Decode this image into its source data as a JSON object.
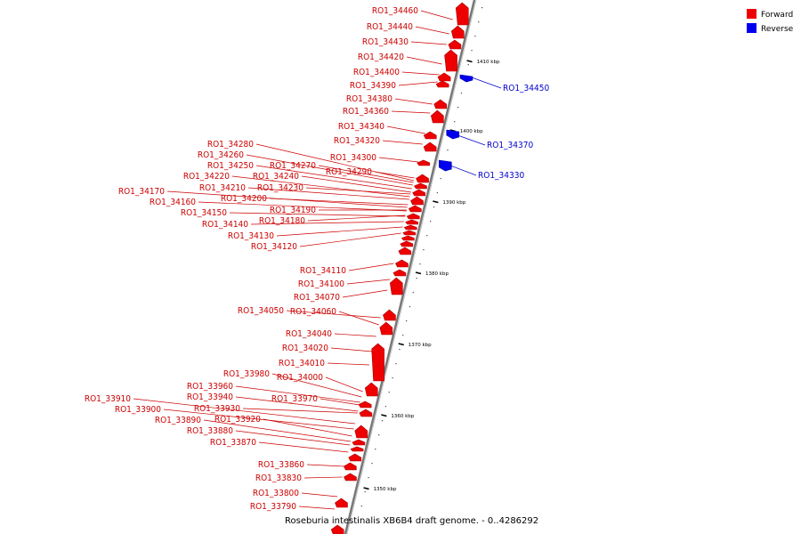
{
  "title": "Roseburia intestinalis XB6B4 draft genome. - 0..4286292",
  "legend": [
    {
      "label": "Forward",
      "color": "#ee0000"
    },
    {
      "label": "Reverse",
      "color": "#0000ee"
    }
  ],
  "colors": {
    "forward": "#ee0000",
    "forward_line": "#cc0000",
    "forward_dark": "#aa0000",
    "reverse": "#0000ee",
    "reverse_line": "#0000cc",
    "backbone": "#777777"
  },
  "ticks": [
    "1410 kbp",
    "1400 kbp",
    "1390 kbp",
    "1380 kbp",
    "1370 kbp",
    "1360 kbp",
    "1350 kbp"
  ],
  "forward_labels": [
    "RO1_34460",
    "RO1_34440",
    "RO1_34430",
    "RO1_34420",
    "RO1_34400",
    "RO1_34390",
    "RO1_34380",
    "RO1_34360",
    "RO1_34340",
    "RO1_34320",
    "RO1_34300",
    "RO1_34290",
    "RO1_34280",
    "RO1_34260",
    "RO1_34250",
    "RO1_34270",
    "RO1_34240",
    "RO1_34220",
    "RO1_34210",
    "RO1_34230",
    "RO1_34170",
    "RO1_34200",
    "RO1_34160",
    "RO1_34190",
    "RO1_34150",
    "RO1_34180",
    "RO1_34140",
    "RO1_34130",
    "RO1_34120",
    "RO1_34110",
    "RO1_34100",
    "RO1_34070",
    "RO1_34050",
    "RO1_34060",
    "RO1_34040",
    "RO1_34020",
    "RO1_34010",
    "RO1_33980",
    "RO1_34000",
    "RO1_33960",
    "RO1_33970",
    "RO1_33940",
    "RO1_33910",
    "RO1_33930",
    "RO1_33900",
    "RO1_33920",
    "RO1_33890",
    "RO1_33880",
    "RO1_33870",
    "RO1_33860",
    "RO1_33830",
    "RO1_33800",
    "RO1_33790"
  ],
  "reverse_labels": [
    "RO1_34450",
    "RO1_34370",
    "RO1_34330"
  ]
}
